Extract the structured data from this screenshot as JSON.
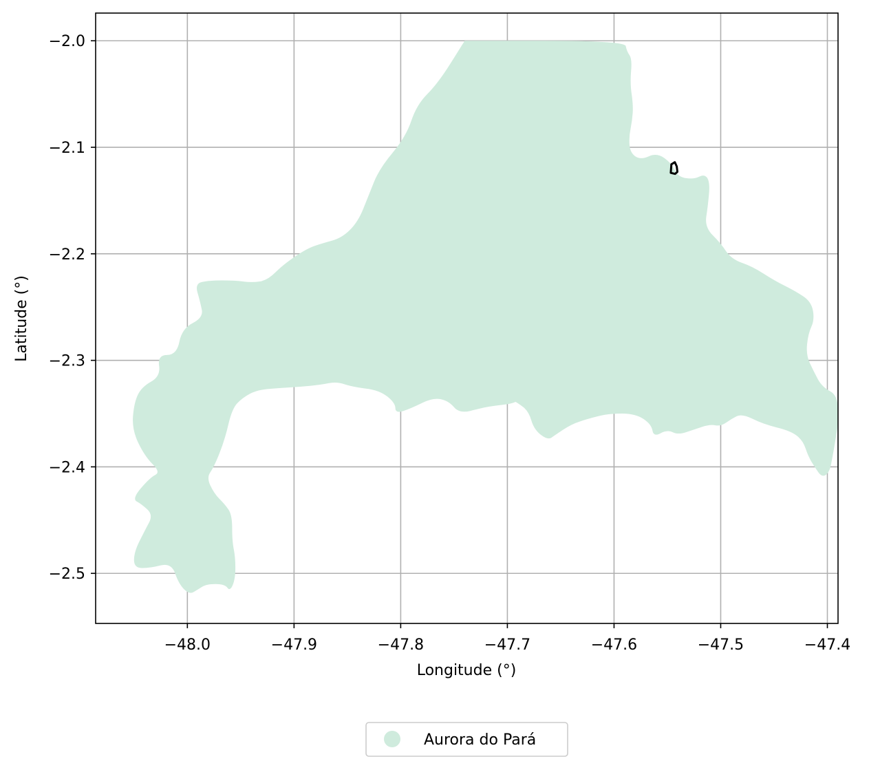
{
  "chart_data": {
    "type": "map",
    "xlabel": "Longitude (°)",
    "ylabel": "Latitude (°)",
    "xlim": [
      -48.086,
      -47.39
    ],
    "ylim": [
      -2.547,
      -1.974
    ],
    "xticks": [
      -48.0,
      -47.9,
      -47.8,
      -47.7,
      -47.6,
      -47.5,
      -47.4
    ],
    "xtick_labels": [
      "−48.0",
      "−47.9",
      "−47.8",
      "−47.7",
      "−47.6",
      "−47.5",
      "−47.4"
    ],
    "yticks": [
      -2.0,
      -2.1,
      -2.2,
      -2.3,
      -2.4,
      -2.5
    ],
    "ytick_labels": [
      "−2.0",
      "−2.1",
      "−2.2",
      "−2.3",
      "−2.4",
      "−2.5"
    ],
    "grid": true,
    "region_color": "#cfebdd",
    "marker_color": "#000000",
    "legend": {
      "position": "bottom-center",
      "entries": [
        {
          "label": "Aurora do Pará",
          "color": "#cfebdd"
        }
      ]
    },
    "region": {
      "name": "Aurora do Pará",
      "boundary": [
        [
          -47.74,
          -2.0
        ],
        [
          -47.59,
          -2.0
        ],
        [
          -47.588,
          -2.01
        ],
        [
          -47.583,
          -2.017
        ],
        [
          -47.585,
          -2.04
        ],
        [
          -47.582,
          -2.06
        ],
        [
          -47.583,
          -2.075
        ],
        [
          -47.586,
          -2.09
        ],
        [
          -47.585,
          -2.105
        ],
        [
          -47.575,
          -2.112
        ],
        [
          -47.56,
          -2.105
        ],
        [
          -47.546,
          -2.115
        ],
        [
          -47.54,
          -2.128
        ],
        [
          -47.525,
          -2.13
        ],
        [
          -47.515,
          -2.125
        ],
        [
          -47.51,
          -2.133
        ],
        [
          -47.512,
          -2.155
        ],
        [
          -47.515,
          -2.175
        ],
        [
          -47.5,
          -2.19
        ],
        [
          -47.49,
          -2.205
        ],
        [
          -47.47,
          -2.212
        ],
        [
          -47.45,
          -2.225
        ],
        [
          -47.43,
          -2.235
        ],
        [
          -47.415,
          -2.245
        ],
        [
          -47.412,
          -2.262
        ],
        [
          -47.418,
          -2.275
        ],
        [
          -47.42,
          -2.295
        ],
        [
          -47.413,
          -2.31
        ],
        [
          -47.405,
          -2.325
        ],
        [
          -47.39,
          -2.333
        ],
        [
          -47.39,
          -2.36
        ],
        [
          -47.392,
          -2.372
        ],
        [
          -47.395,
          -2.39
        ],
        [
          -47.398,
          -2.405
        ],
        [
          -47.405,
          -2.41
        ],
        [
          -47.412,
          -2.4
        ],
        [
          -47.418,
          -2.39
        ],
        [
          -47.423,
          -2.375
        ],
        [
          -47.435,
          -2.366
        ],
        [
          -47.46,
          -2.36
        ],
        [
          -47.48,
          -2.35
        ],
        [
          -47.49,
          -2.355
        ],
        [
          -47.5,
          -2.362
        ],
        [
          -47.51,
          -2.36
        ],
        [
          -47.525,
          -2.365
        ],
        [
          -47.54,
          -2.37
        ],
        [
          -47.55,
          -2.365
        ],
        [
          -47.563,
          -2.372
        ],
        [
          -47.565,
          -2.36
        ],
        [
          -47.58,
          -2.35
        ],
        [
          -47.605,
          -2.35
        ],
        [
          -47.625,
          -2.355
        ],
        [
          -47.64,
          -2.36
        ],
        [
          -47.655,
          -2.37
        ],
        [
          -47.662,
          -2.375
        ],
        [
          -47.675,
          -2.365
        ],
        [
          -47.68,
          -2.348
        ],
        [
          -47.69,
          -2.34
        ],
        [
          -47.705,
          -2.332
        ],
        [
          -47.72,
          -2.32
        ],
        [
          -47.735,
          -2.305
        ],
        [
          -47.72,
          -2.3
        ],
        [
          -47.7,
          -2.3
        ],
        [
          -47.684,
          -2.32
        ],
        [
          -47.685,
          -2.33
        ],
        [
          -47.69,
          -2.34
        ],
        [
          -47.715,
          -2.343
        ],
        [
          -47.725,
          -2.345
        ],
        [
          -47.745,
          -2.35
        ],
        [
          -47.755,
          -2.338
        ],
        [
          -47.77,
          -2.335
        ],
        [
          -47.79,
          -2.345
        ],
        [
          -47.805,
          -2.35
        ],
        [
          -47.805,
          -2.34
        ],
        [
          -47.82,
          -2.328
        ],
        [
          -47.845,
          -2.325
        ],
        [
          -47.86,
          -2.32
        ],
        [
          -47.875,
          -2.323
        ],
        [
          -47.895,
          -2.325
        ],
        [
          -47.915,
          -2.326
        ],
        [
          -47.935,
          -2.328
        ],
        [
          -47.948,
          -2.335
        ],
        [
          -47.958,
          -2.345
        ],
        [
          -47.965,
          -2.375
        ],
        [
          -47.975,
          -2.4
        ],
        [
          -47.982,
          -2.41
        ],
        [
          -47.975,
          -2.425
        ],
        [
          -47.965,
          -2.435
        ],
        [
          -47.958,
          -2.445
        ],
        [
          -47.958,
          -2.47
        ],
        [
          -47.955,
          -2.485
        ],
        [
          -47.955,
          -2.505
        ],
        [
          -47.96,
          -2.517
        ],
        [
          -47.965,
          -2.51
        ],
        [
          -47.982,
          -2.51
        ],
        [
          -47.99,
          -2.515
        ],
        [
          -47.998,
          -2.52
        ],
        [
          -48.008,
          -2.51
        ],
        [
          -48.015,
          -2.49
        ],
        [
          -48.035,
          -2.495
        ],
        [
          -48.05,
          -2.495
        ],
        [
          -48.05,
          -2.48
        ],
        [
          -48.04,
          -2.46
        ],
        [
          -48.032,
          -2.445
        ],
        [
          -48.043,
          -2.435
        ],
        [
          -48.052,
          -2.43
        ],
        [
          -48.035,
          -2.41
        ],
        [
          -48.025,
          -2.405
        ],
        [
          -48.04,
          -2.39
        ],
        [
          -48.052,
          -2.365
        ],
        [
          -48.05,
          -2.34
        ],
        [
          -48.043,
          -2.325
        ],
        [
          -48.025,
          -2.315
        ],
        [
          -48.028,
          -2.295
        ],
        [
          -48.01,
          -2.295
        ],
        [
          -48.005,
          -2.27
        ],
        [
          -47.985,
          -2.26
        ],
        [
          -47.988,
          -2.245
        ],
        [
          -47.993,
          -2.228
        ],
        [
          -47.98,
          -2.225
        ],
        [
          -47.955,
          -2.225
        ],
        [
          -47.94,
          -2.227
        ],
        [
          -47.925,
          -2.225
        ],
        [
          -47.91,
          -2.21
        ],
        [
          -47.888,
          -2.195
        ],
        [
          -47.873,
          -2.19
        ],
        [
          -47.855,
          -2.185
        ],
        [
          -47.84,
          -2.17
        ],
        [
          -47.83,
          -2.145
        ],
        [
          -47.82,
          -2.12
        ],
        [
          -47.795,
          -2.09
        ],
        [
          -47.785,
          -2.06
        ],
        [
          -47.765,
          -2.04
        ],
        [
          -47.74,
          -2.0
        ]
      ]
    },
    "markers": [
      {
        "type": "polygon",
        "points": [
          [
            -47.5462,
            -2.116
          ],
          [
            -47.543,
            -2.114
          ],
          [
            -47.5412,
            -2.118
          ],
          [
            -47.5406,
            -2.123
          ],
          [
            -47.5428,
            -2.125
          ],
          [
            -47.5468,
            -2.124
          ]
        ]
      }
    ]
  }
}
